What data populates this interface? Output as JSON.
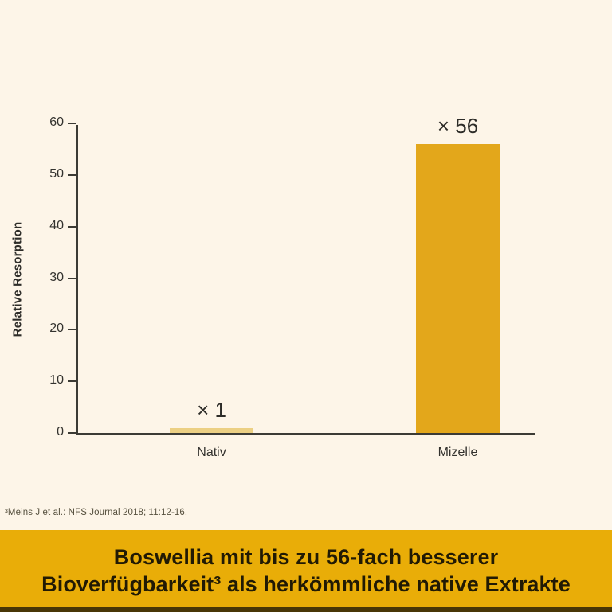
{
  "chart_data": {
    "type": "bar",
    "categories": [
      "Nativ",
      "Mizelle"
    ],
    "values": [
      1,
      56
    ],
    "bar_labels": [
      "× 1",
      "× 56"
    ],
    "title": "",
    "xlabel": "",
    "ylabel": "Relative Resorption",
    "ylim": [
      0,
      60
    ],
    "yticks": [
      0,
      10,
      20,
      30,
      40,
      50,
      60
    ],
    "grid": false,
    "legend": false,
    "bar_colors": [
      "#ecd084",
      "#e3a71b"
    ]
  },
  "footnote": {
    "text": "³Meins J et al.: NFS Journal 2018; 11:12-16."
  },
  "banner": {
    "line1": "Boswellia mit bis zu 56-fach besserer",
    "line2": "Bioverfügbarkeit³ als herkömmliche native Extrakte"
  },
  "colors": {
    "background": "#fdf5e8",
    "axis": "#3c3b35",
    "banner_bg": "#e9ad08",
    "banner_strip": "#483607",
    "banner_text": "#211a04"
  }
}
